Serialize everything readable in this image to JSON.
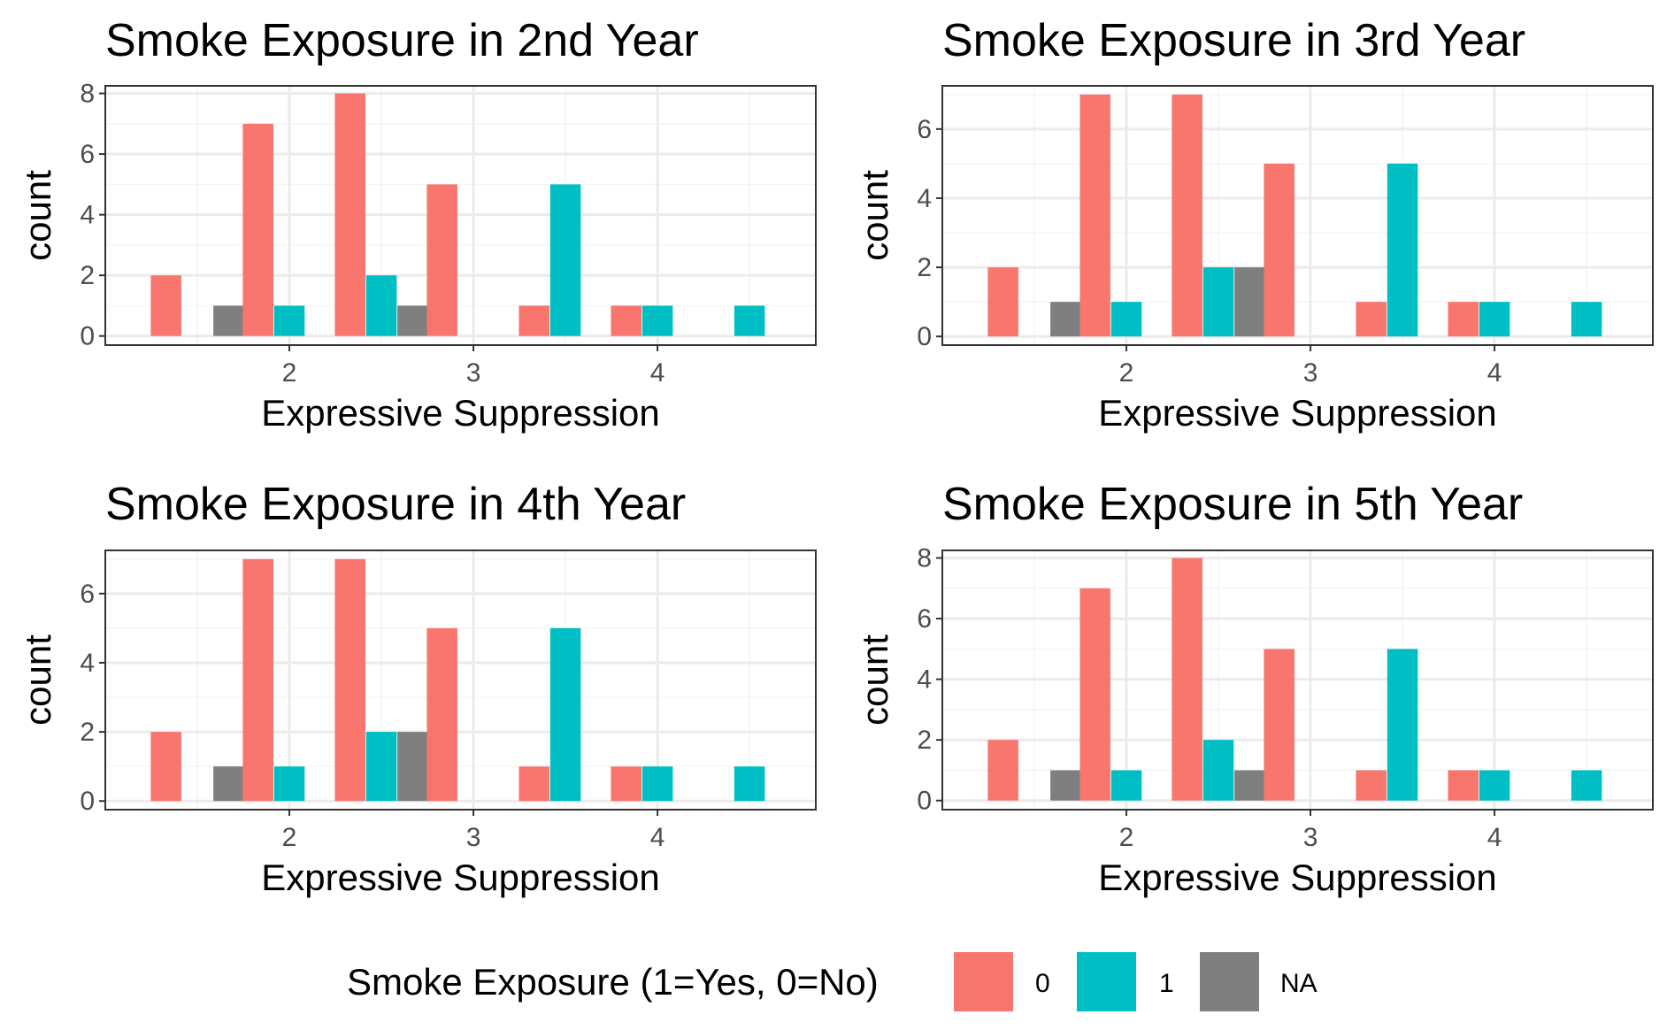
{
  "chart_data": [
    {
      "type": "bar",
      "title": "Smoke Exposure in 2nd Year",
      "xlabel": "Expressive Suppression",
      "ylabel": "count",
      "xlim": [
        1.0,
        4.86
      ],
      "ylim": [
        -0.3,
        8.25
      ],
      "xticks": [
        2,
        3,
        4
      ],
      "xtick_labels": [
        "2",
        "3",
        "4"
      ],
      "yticks": [
        0,
        2,
        4,
        6,
        8
      ],
      "ytick_labels": [
        "0",
        "2",
        "4",
        "6",
        "8"
      ],
      "grid": true,
      "bars": [
        {
          "series": "0",
          "x": 1.33,
          "value": 2
        },
        {
          "series": "NA",
          "x": 1.67,
          "value": 1
        },
        {
          "series": "0",
          "x": 1.83,
          "value": 7
        },
        {
          "series": "1",
          "x": 2.0,
          "value": 1
        },
        {
          "series": "0",
          "x": 2.33,
          "value": 8
        },
        {
          "series": "1",
          "x": 2.5,
          "value": 2
        },
        {
          "series": "NA",
          "x": 2.67,
          "value": 1
        },
        {
          "series": "0",
          "x": 2.83,
          "value": 5
        },
        {
          "series": "0",
          "x": 3.33,
          "value": 1
        },
        {
          "series": "1",
          "x": 3.5,
          "value": 5
        },
        {
          "series": "0",
          "x": 3.83,
          "value": 1
        },
        {
          "series": "1",
          "x": 4.0,
          "value": 1
        },
        {
          "series": "1",
          "x": 4.5,
          "value": 1
        }
      ]
    },
    {
      "type": "bar",
      "title": "Smoke Exposure in 3rd Year",
      "xlabel": "Expressive Suppression",
      "ylabel": "count",
      "xlim": [
        1.0,
        4.86
      ],
      "ylim": [
        -0.25,
        7.25
      ],
      "xticks": [
        2,
        3,
        4
      ],
      "xtick_labels": [
        "2",
        "3",
        "4"
      ],
      "yticks": [
        0,
        2,
        4,
        6
      ],
      "ytick_labels": [
        "0",
        "2",
        "4",
        "6"
      ],
      "grid": true,
      "bars": [
        {
          "series": "0",
          "x": 1.33,
          "value": 2
        },
        {
          "series": "NA",
          "x": 1.67,
          "value": 1
        },
        {
          "series": "0",
          "x": 1.83,
          "value": 7
        },
        {
          "series": "1",
          "x": 2.0,
          "value": 1
        },
        {
          "series": "0",
          "x": 2.33,
          "value": 7
        },
        {
          "series": "1",
          "x": 2.5,
          "value": 2
        },
        {
          "series": "NA",
          "x": 2.67,
          "value": 2
        },
        {
          "series": "0",
          "x": 2.83,
          "value": 5
        },
        {
          "series": "0",
          "x": 3.33,
          "value": 1
        },
        {
          "series": "1",
          "x": 3.5,
          "value": 5
        },
        {
          "series": "0",
          "x": 3.83,
          "value": 1
        },
        {
          "series": "1",
          "x": 4.0,
          "value": 1
        },
        {
          "series": "1",
          "x": 4.5,
          "value": 1
        }
      ]
    },
    {
      "type": "bar",
      "title": "Smoke Exposure in 4th Year",
      "xlabel": "Expressive Suppression",
      "ylabel": "count",
      "xlim": [
        1.0,
        4.86
      ],
      "ylim": [
        -0.25,
        7.25
      ],
      "xticks": [
        2,
        3,
        4
      ],
      "xtick_labels": [
        "2",
        "3",
        "4"
      ],
      "yticks": [
        0,
        2,
        4,
        6
      ],
      "ytick_labels": [
        "0",
        "2",
        "4",
        "6"
      ],
      "grid": true,
      "bars": [
        {
          "series": "0",
          "x": 1.33,
          "value": 2
        },
        {
          "series": "NA",
          "x": 1.67,
          "value": 1
        },
        {
          "series": "0",
          "x": 1.83,
          "value": 7
        },
        {
          "series": "1",
          "x": 2.0,
          "value": 1
        },
        {
          "series": "0",
          "x": 2.33,
          "value": 7
        },
        {
          "series": "1",
          "x": 2.5,
          "value": 2
        },
        {
          "series": "NA",
          "x": 2.67,
          "value": 2
        },
        {
          "series": "0",
          "x": 2.83,
          "value": 5
        },
        {
          "series": "0",
          "x": 3.33,
          "value": 1
        },
        {
          "series": "1",
          "x": 3.5,
          "value": 5
        },
        {
          "series": "0",
          "x": 3.83,
          "value": 1
        },
        {
          "series": "1",
          "x": 4.0,
          "value": 1
        },
        {
          "series": "1",
          "x": 4.5,
          "value": 1
        }
      ]
    },
    {
      "type": "bar",
      "title": "Smoke Exposure in 5th Year",
      "xlabel": "Expressive Suppression",
      "ylabel": "count",
      "xlim": [
        1.0,
        4.86
      ],
      "ylim": [
        -0.3,
        8.25
      ],
      "xticks": [
        2,
        3,
        4
      ],
      "xtick_labels": [
        "2",
        "3",
        "4"
      ],
      "yticks": [
        0,
        2,
        4,
        6,
        8
      ],
      "ytick_labels": [
        "0",
        "2",
        "4",
        "6",
        "8"
      ],
      "grid": true,
      "bars": [
        {
          "series": "0",
          "x": 1.33,
          "value": 2
        },
        {
          "series": "NA",
          "x": 1.67,
          "value": 1
        },
        {
          "series": "0",
          "x": 1.83,
          "value": 7
        },
        {
          "series": "1",
          "x": 2.0,
          "value": 1
        },
        {
          "series": "0",
          "x": 2.33,
          "value": 8
        },
        {
          "series": "1",
          "x": 2.5,
          "value": 2
        },
        {
          "series": "NA",
          "x": 2.67,
          "value": 1
        },
        {
          "series": "0",
          "x": 2.83,
          "value": 5
        },
        {
          "series": "0",
          "x": 3.33,
          "value": 1
        },
        {
          "series": "1",
          "x": 3.5,
          "value": 5
        },
        {
          "series": "0",
          "x": 3.83,
          "value": 1
        },
        {
          "series": "1",
          "x": 4.0,
          "value": 1
        },
        {
          "series": "1",
          "x": 4.5,
          "value": 1
        }
      ]
    }
  ],
  "bar_width": 0.166,
  "legend": {
    "title": "Smoke Exposure (1=Yes, 0=No)",
    "placement": "bottom",
    "items": [
      {
        "key": "0",
        "label": "0",
        "color": "#F8766D"
      },
      {
        "key": "1",
        "label": "1",
        "color": "#00BFC4"
      },
      {
        "key": "NA",
        "label": "NA",
        "color": "#7F7F7F"
      }
    ]
  },
  "colors": {
    "panel_border": "#333333",
    "grid_major": "#EBEBEB",
    "grid_minor": "#F5F5F5",
    "tick_text": "#4D4D4D"
  }
}
